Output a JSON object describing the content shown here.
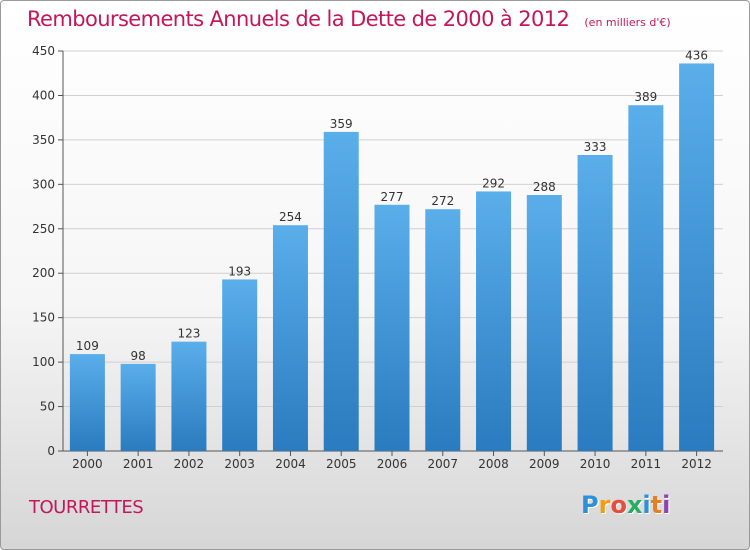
{
  "chart_data": {
    "type": "bar",
    "title": "Remboursements Annuels de la Dette de 2000 à 2012",
    "subtitle": "(en milliers d'€)",
    "categories": [
      "2000",
      "2001",
      "2002",
      "2003",
      "2004",
      "2005",
      "2006",
      "2007",
      "2008",
      "2009",
      "2010",
      "2011",
      "2012"
    ],
    "values": [
      109,
      98,
      123,
      193,
      254,
      359,
      277,
      272,
      292,
      288,
      333,
      389,
      436
    ],
    "ylim": [
      0,
      450
    ],
    "yticks": [
      0,
      50,
      100,
      150,
      200,
      250,
      300,
      350,
      400,
      450
    ],
    "grid": true,
    "bar_color_top": "#5aaeea",
    "bar_color_bottom": "#2a7bbf"
  },
  "city": "TOURRETTES",
  "logo": {
    "letters": [
      "P",
      "r",
      "o",
      "x",
      "i",
      "t",
      "i"
    ],
    "colors": [
      "#2f8fd8",
      "#f39c12",
      "#e74c3c",
      "#27ae60",
      "#2f8fd8",
      "#e67e22",
      "#8e44ad"
    ]
  }
}
